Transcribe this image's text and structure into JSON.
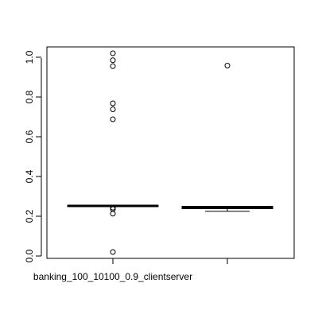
{
  "chart_data": {
    "type": "boxplot",
    "title": "",
    "xlabel": "",
    "ylabel": "",
    "ylim": [
      -0.02,
      1.06
    ],
    "yticks": [
      0.0,
      0.2,
      0.4,
      0.6,
      0.8,
      1.0
    ],
    "ytick_labels": [
      "0.0",
      "0.2",
      "0.4",
      "0.6",
      "0.8",
      "1.0"
    ],
    "xtick_labels": [
      "banking_100_10100_0.9_clientserver",
      ""
    ],
    "grid": false,
    "legend": "none",
    "boxes": [
      {
        "q1": 0.249,
        "median": 0.252,
        "q3": 0.255,
        "whisker_low": 0.249,
        "whisker_high": 0.255,
        "outliers": [
          1.02,
          0.985,
          0.955,
          0.768,
          0.738,
          0.688,
          0.243,
          0.236,
          0.213,
          0.02
        ]
      },
      {
        "q1": 0.238,
        "median": 0.245,
        "q3": 0.25,
        "whisker_low": 0.225,
        "whisker_high": 0.25,
        "outliers": [
          0.958
        ]
      }
    ]
  }
}
